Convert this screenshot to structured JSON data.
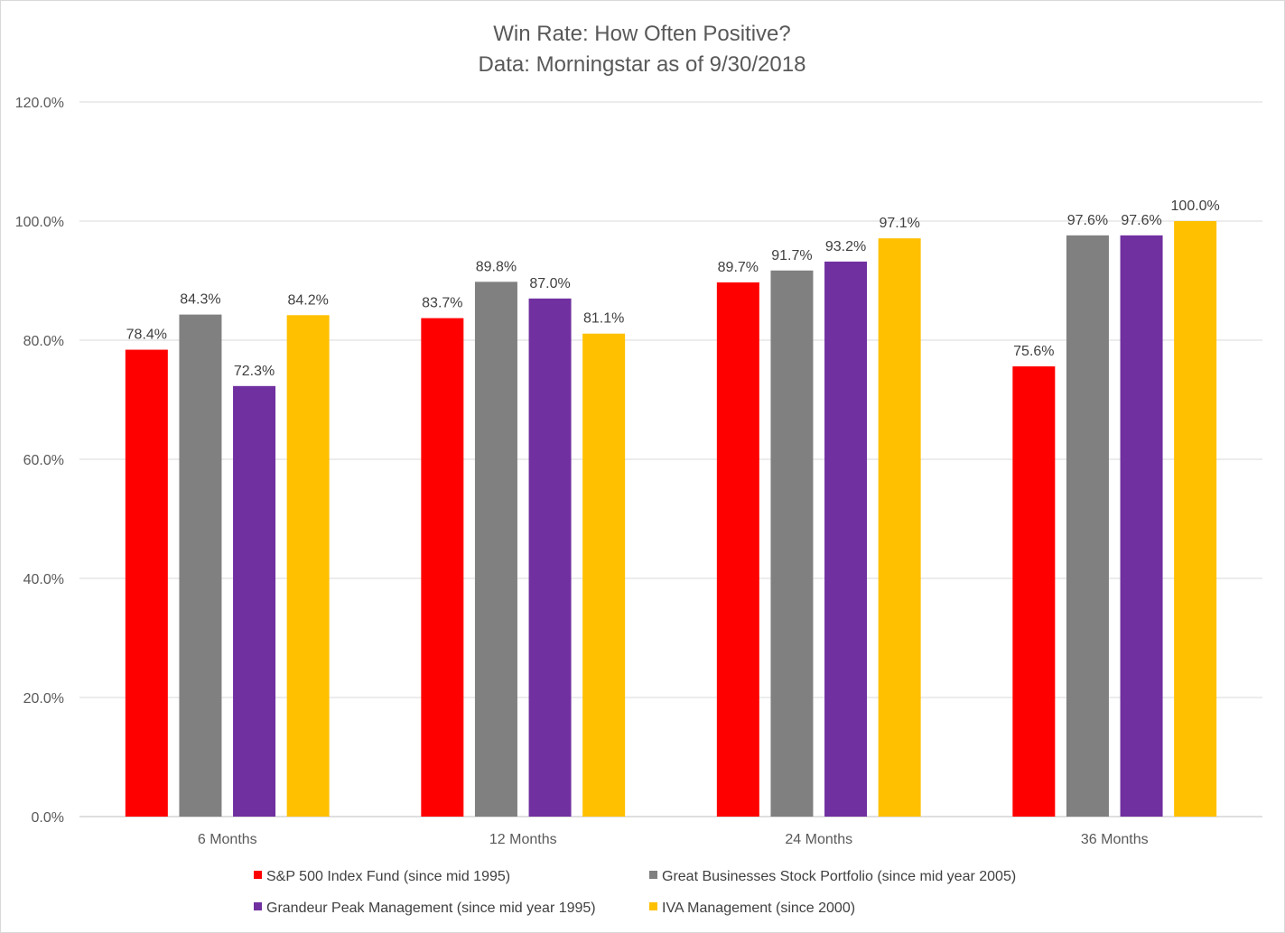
{
  "chart_data": {
    "type": "bar",
    "title": "Win Rate:  How Often Positive?",
    "subtitle": "Data:  Morningstar as of 9/30/2018",
    "categories": [
      "6 Months",
      "12 Months",
      "24 Months",
      "36 Months"
    ],
    "ylim": [
      0,
      120
    ],
    "ytick_step": 20,
    "ytick_labels": [
      "0.0%",
      "20.0%",
      "40.0%",
      "60.0%",
      "80.0%",
      "100.0%",
      "120.0%"
    ],
    "grid": true,
    "legend_position": "bottom",
    "series": [
      {
        "name": "S&P 500 Index Fund (since mid 1995)",
        "color": "#ff0000",
        "values": [
          78.4,
          83.7,
          89.7,
          75.6
        ],
        "labels": [
          "78.4%",
          "83.7%",
          "89.7%",
          "75.6%"
        ]
      },
      {
        "name": "Great Businesses Stock Portfolio  (since mid year 2005)",
        "color": "#808080",
        "values": [
          84.3,
          89.8,
          91.7,
          97.6
        ],
        "labels": [
          "84.3%",
          "89.8%",
          "91.7%",
          "97.6%"
        ]
      },
      {
        "name": "Grandeur Peak Management (since mid year 1995)",
        "color": "#7030a0",
        "values": [
          72.3,
          87.0,
          93.2,
          97.6
        ],
        "labels": [
          "72.3%",
          "87.0%",
          "93.2%",
          "97.6%"
        ]
      },
      {
        "name": "IVA Management (since 2000)",
        "color": "#ffc000",
        "values": [
          84.2,
          81.1,
          97.1,
          100.0
        ],
        "labels": [
          "84.2%",
          "81.1%",
          "97.1%",
          "100.0%"
        ]
      }
    ]
  }
}
